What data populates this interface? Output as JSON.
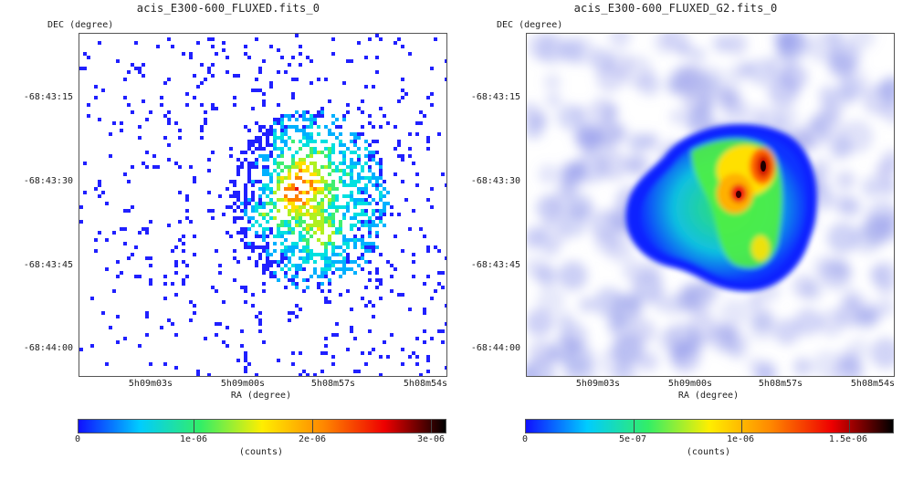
{
  "panels": [
    {
      "title": "acis_E300-600_FLUXED.fits_0",
      "dec_label": "DEC (degree)",
      "ra_label": "RA (degree)",
      "dec_ticks": [
        "-68:43:15",
        "-68:43:30",
        "-68:43:45",
        "-68:44:00"
      ],
      "ra_ticks": [
        "5h09m03s",
        "5h09m00s",
        "5h08m57s",
        "5h08m54s"
      ],
      "colorbar": {
        "ticks": [
          "0",
          "1e-06",
          "2e-06",
          "3e-06"
        ],
        "label": "(counts)",
        "colors": [
          "#1010ff",
          "#00ccff",
          "#33ee66",
          "#ffee00",
          "#ff8800",
          "#ee0000",
          "#000000"
        ]
      },
      "image_kind": "binned-counts"
    },
    {
      "title": "acis_E300-600_FLUXED_G2.fits_0",
      "dec_label": "DEC (degree)",
      "ra_label": "RA (degree)",
      "dec_ticks": [
        "-68:43:15",
        "-68:43:30",
        "-68:43:45",
        "-68:44:00"
      ],
      "ra_ticks": [
        "5h09m03s",
        "5h09m00s",
        "5h08m57s",
        "5h08m54s"
      ],
      "colorbar": {
        "ticks": [
          "0",
          "5e-07",
          "1e-06",
          "1.5e-06"
        ],
        "label": "(counts)",
        "colors": [
          "#1010ff",
          "#00ccff",
          "#33ee66",
          "#ffee00",
          "#ff8800",
          "#ee0000",
          "#000000"
        ]
      },
      "image_kind": "smoothed"
    }
  ]
}
